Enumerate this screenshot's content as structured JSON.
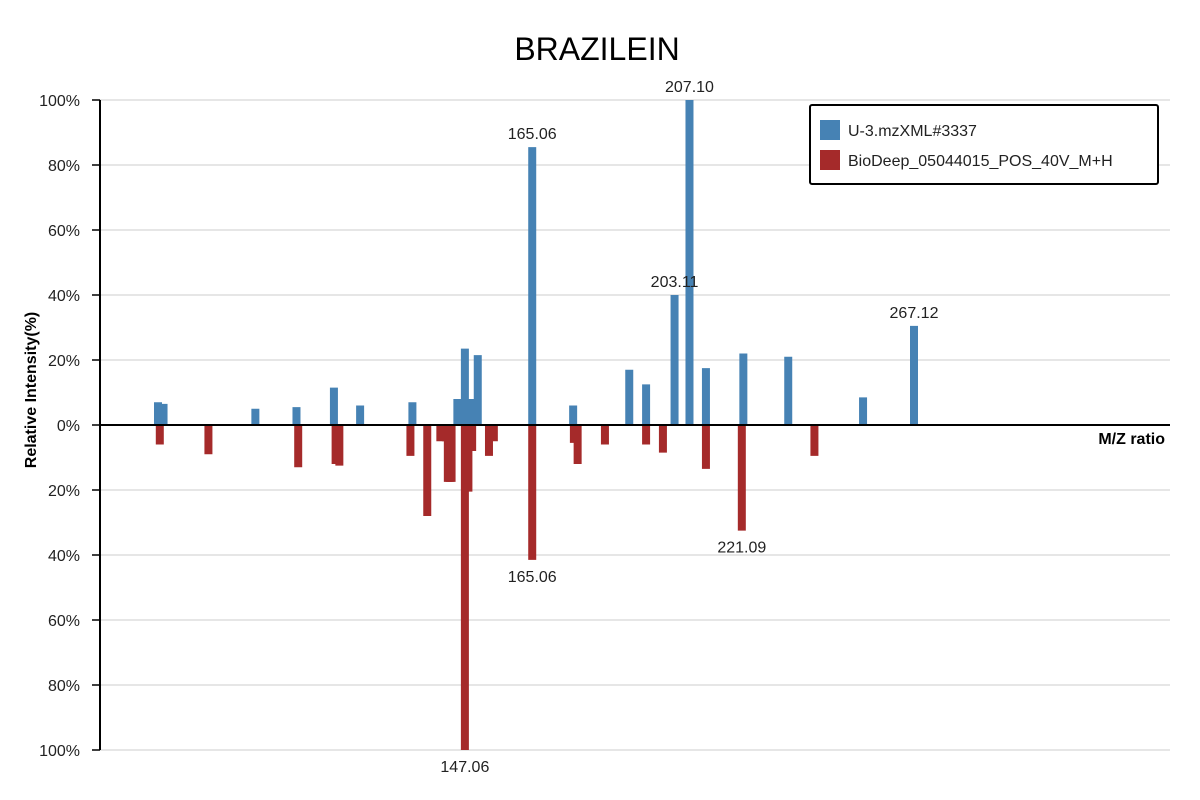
{
  "chart_data": {
    "type": "bar",
    "title": "BRAZILEIN",
    "xlabel": "M/Z ratio",
    "ylabel": "Relative Intensity(%)",
    "ylim": [
      -100,
      100
    ],
    "y_tick_labels": [
      "100%",
      "80%",
      "60%",
      "40%",
      "20%",
      "0%",
      "20%",
      "40%",
      "60%",
      "80%",
      "100%"
    ],
    "grid": true,
    "legend_position": "top-right",
    "series": [
      {
        "name": "U-3.mzXML#3337",
        "color": "#4682b4",
        "direction": "up",
        "peaks": [
          {
            "mz": 65.02,
            "intensity": 7
          },
          {
            "mz": 66.5,
            "intensity": 6.5
          },
          {
            "mz": 91.05,
            "intensity": 5
          },
          {
            "mz": 102.04,
            "intensity": 5.5
          },
          {
            "mz": 112.05,
            "intensity": 11.5
          },
          {
            "mz": 119.05,
            "intensity": 6
          },
          {
            "mz": 133.03,
            "intensity": 7
          },
          {
            "mz": 145.05,
            "intensity": 8
          },
          {
            "mz": 147.06,
            "intensity": 23.5
          },
          {
            "mz": 149.02,
            "intensity": 8
          },
          {
            "mz": 150.5,
            "intensity": 21.5
          },
          {
            "mz": 165.06,
            "intensity": 85.5,
            "label": "165.06"
          },
          {
            "mz": 176.0,
            "intensity": 6
          },
          {
            "mz": 191.0,
            "intensity": 17
          },
          {
            "mz": 195.5,
            "intensity": 12.5
          },
          {
            "mz": 203.11,
            "intensity": 40,
            "label": "203.11"
          },
          {
            "mz": 207.1,
            "intensity": 100,
            "label": "207.10"
          },
          {
            "mz": 211.5,
            "intensity": 17.5
          },
          {
            "mz": 221.5,
            "intensity": 22
          },
          {
            "mz": 233.5,
            "intensity": 21
          },
          {
            "mz": 253.5,
            "intensity": 8.5
          },
          {
            "mz": 267.12,
            "intensity": 30.5,
            "label": "267.12"
          }
        ]
      },
      {
        "name": "BioDeep_05044015_POS_40V_M+H",
        "color": "#a52a2a",
        "direction": "down",
        "peaks": [
          {
            "mz": 65.5,
            "intensity": 6
          },
          {
            "mz": 78.5,
            "intensity": 9
          },
          {
            "mz": 102.5,
            "intensity": 13
          },
          {
            "mz": 112.5,
            "intensity": 12
          },
          {
            "mz": 113.5,
            "intensity": 12.5
          },
          {
            "mz": 132.5,
            "intensity": 9.5
          },
          {
            "mz": 137.0,
            "intensity": 28
          },
          {
            "mz": 142.0,
            "intensity": 5
          },
          {
            "mz": 143.0,
            "intensity": 17.5
          },
          {
            "mz": 143.5,
            "intensity": 17.5
          },
          {
            "mz": 140.5,
            "intensity": 5
          },
          {
            "mz": 142.5,
            "intensity": 17.5
          },
          {
            "mz": 149.0,
            "intensity": 8
          },
          {
            "mz": 147.06,
            "intensity": 100,
            "label": "147.06"
          },
          {
            "mz": 148.0,
            "intensity": 20.5
          },
          {
            "mz": 153.5,
            "intensity": 9.5
          },
          {
            "mz": 154.8,
            "intensity": 5
          },
          {
            "mz": 165.06,
            "intensity": 41.5,
            "label": "165.06"
          },
          {
            "mz": 176.2,
            "intensity": 5.5
          },
          {
            "mz": 177.2,
            "intensity": 12
          },
          {
            "mz": 184.5,
            "intensity": 6
          },
          {
            "mz": 195.5,
            "intensity": 6
          },
          {
            "mz": 200.0,
            "intensity": 8.5
          },
          {
            "mz": 211.5,
            "intensity": 13.5
          },
          {
            "mz": 221.09,
            "intensity": 32.5,
            "label": "221.09"
          },
          {
            "mz": 240.5,
            "intensity": 9.5
          }
        ]
      }
    ],
    "x_mapping_hint_px": null
  }
}
